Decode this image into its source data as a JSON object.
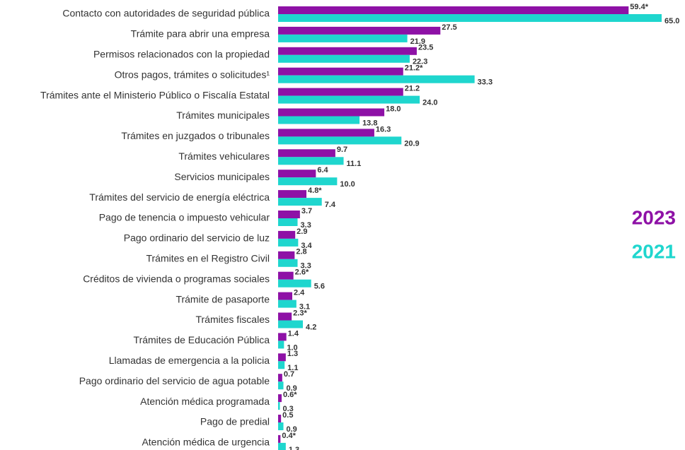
{
  "chart_data": {
    "type": "bar",
    "orientation": "horizontal",
    "categories": [
      "Contacto con autoridades de seguridad pública",
      "Trámite para abrir una empresa",
      "Permisos relacionados con la propiedad",
      "Otros pagos, trámites o solicitudes¹",
      "Trámites ante el Ministerio Público o Fiscalía Estatal",
      "Trámites municipales",
      "Trámites en juzgados o tribunales",
      "Trámites vehiculares",
      "Servicios municipales",
      "Trámites del servicio de energía eléctrica",
      "Pago de tenencia o impuesto vehicular",
      "Pago ordinario del servicio de luz",
      "Trámites en el Registro Civil",
      "Créditos de vivienda o programas sociales",
      "Trámite de pasaporte",
      "Trámites fiscales",
      "Trámites de Educación Pública",
      "Llamadas de emergencia a la policia",
      "Pago ordinario del servicio de agua potable",
      "Atención médica programada",
      "Pago de predial",
      "Atención médica de urgencia"
    ],
    "series": [
      {
        "name": "2023",
        "color": "#8e11a6",
        "values": [
          59.4,
          27.5,
          23.5,
          21.2,
          21.2,
          18.0,
          16.3,
          9.7,
          6.4,
          4.8,
          3.7,
          2.9,
          2.8,
          2.6,
          2.4,
          2.3,
          1.4,
          1.3,
          0.7,
          0.6,
          0.5,
          0.4
        ],
        "value_labels": [
          "59.4*",
          "27.5",
          "23.5",
          "21.2*",
          "21.2",
          "18.0",
          "16.3",
          "9.7",
          "6.4",
          "4.8*",
          "3.7",
          "2.9",
          "2.8",
          "2.6*",
          "2.4",
          "2.3*",
          "1.4",
          "1.3",
          "0.7",
          "0.6*",
          "0.5",
          "0.4*"
        ]
      },
      {
        "name": "2021",
        "color": "#1fd6ce",
        "values": [
          65.0,
          21.9,
          22.3,
          33.3,
          24.0,
          13.8,
          20.9,
          11.1,
          10.0,
          7.4,
          3.3,
          3.4,
          3.3,
          5.6,
          3.1,
          4.2,
          1.0,
          1.1,
          0.9,
          0.3,
          0.9,
          1.3
        ],
        "value_labels": [
          "65.0",
          "21.9",
          "22.3",
          "33.3",
          "24.0",
          "13.8",
          "20.9",
          "11.1",
          "10.0",
          "7.4",
          "3.3",
          "3.4",
          "3.3",
          "5.6",
          "3.1",
          "4.2",
          "1.0",
          "1.1",
          "0.9",
          "0.3",
          "0.9",
          "1.3"
        ]
      }
    ],
    "xlim": [
      0,
      65
    ],
    "legend": "right"
  }
}
